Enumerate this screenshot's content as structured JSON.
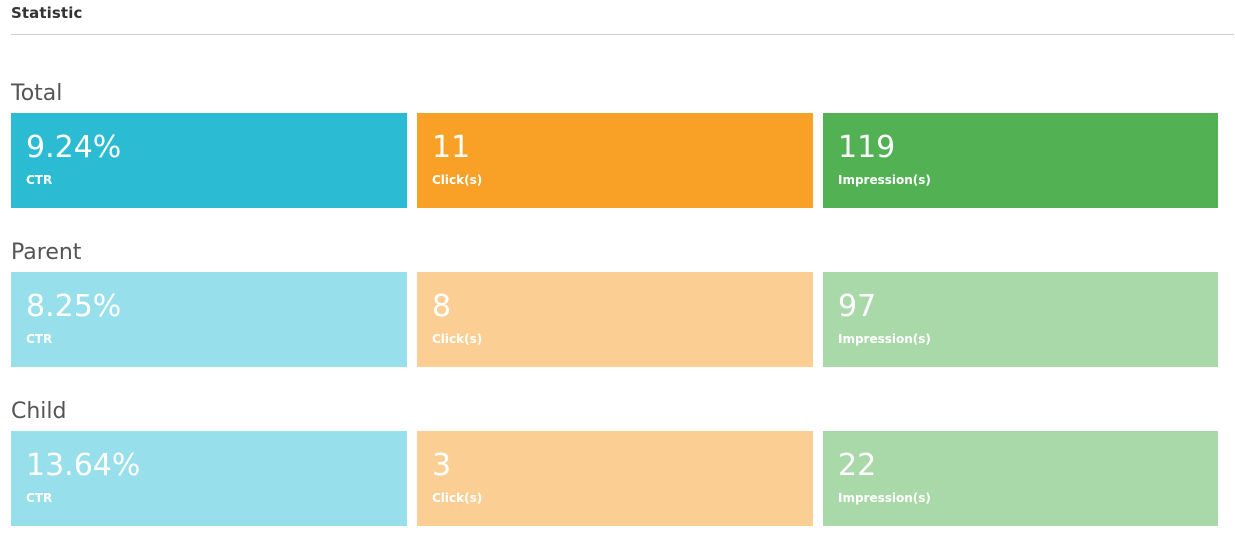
{
  "panel": {
    "title": "Statistic"
  },
  "colors": {
    "ctr": "#2bbcd4",
    "clicks": "#f9a027",
    "impressions": "#52b153",
    "ctr_light": "#97dfea",
    "clicks_light": "#fbcf93",
    "impressions_light": "#a9d8a9"
  },
  "groups": [
    {
      "label": "Total",
      "ctr": {
        "value": "9.24%",
        "caption": "CTR"
      },
      "clicks": {
        "value": "11",
        "caption": "Click(s)"
      },
      "impressions": {
        "value": "119",
        "caption": "Impression(s)"
      }
    },
    {
      "label": "Parent",
      "ctr": {
        "value": "8.25%",
        "caption": "CTR"
      },
      "clicks": {
        "value": "8",
        "caption": "Click(s)"
      },
      "impressions": {
        "value": "97",
        "caption": "Impression(s)"
      }
    },
    {
      "label": "Child",
      "ctr": {
        "value": "13.64%",
        "caption": "CTR"
      },
      "clicks": {
        "value": "3",
        "caption": "Click(s)"
      },
      "impressions": {
        "value": "22",
        "caption": "Impression(s)"
      }
    }
  ]
}
